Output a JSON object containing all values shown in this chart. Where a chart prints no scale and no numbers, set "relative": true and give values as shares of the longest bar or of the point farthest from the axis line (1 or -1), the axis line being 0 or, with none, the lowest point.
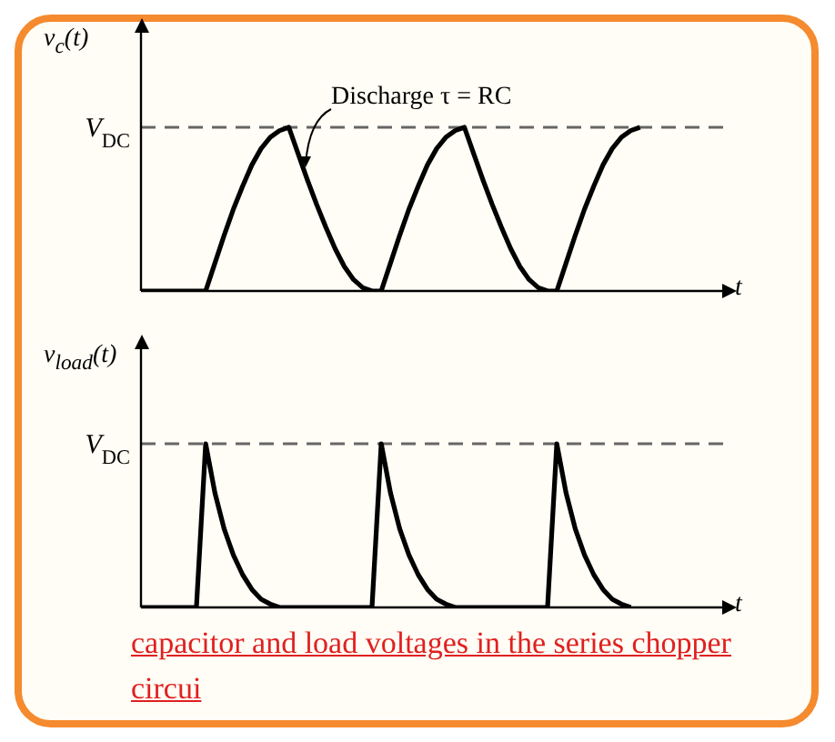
{
  "chart_data": [
    {
      "type": "line",
      "relative": true,
      "ylabel": "v$_{c}$(t)",
      "xlabel": "t",
      "marker": "none",
      "line_style": "solid",
      "categories": [
        null,
        null,
        null,
        null,
        null,
        null,
        null,
        null,
        null,
        null,
        null,
        null,
        null,
        null,
        null,
        null,
        null,
        null,
        null,
        null,
        null,
        null,
        null,
        null,
        null,
        null,
        null,
        null,
        null,
        null,
        null,
        null,
        null,
        null,
        null,
        null,
        null,
        null,
        null,
        null,
        null,
        null,
        null,
        null,
        null,
        null,
        null,
        null,
        null,
        null,
        null,
        null,
        null,
        null,
        null,
        null,
        null,
        null,
        null,
        null,
        null,
        null,
        null,
        null
      ],
      "series": [
        {
          "color": "#000000",
          "values": [
            0,
            0,
            0,
            0,
            0,
            0,
            0,
            0,
            0.17,
            0.34,
            0.5,
            0.64,
            0.77,
            0.87,
            0.94,
            0.98,
            1,
            0.84,
            0.68,
            0.53,
            0.39,
            0.26,
            0.15,
            0.07,
            0.02,
            0,
            0,
            0.17,
            0.34,
            0.5,
            0.64,
            0.77,
            0.87,
            0.94,
            0.98,
            1,
            0.84,
            0.68,
            0.53,
            0.39,
            0.26,
            0.15,
            0.07,
            0.02,
            0,
            0,
            0.17,
            0.34,
            0.5,
            0.64,
            0.77,
            0.87,
            0.94,
            0.98,
            1,
            null,
            null,
            null,
            null,
            null,
            null,
            null,
            null,
            null
          ]
        }
      ],
      "ref_lines": [
        {
          "axis": "y",
          "value": 1,
          "label": "V$_{DC}$",
          "color": "#666666",
          "line_style": "dashed"
        }
      ],
      "annotations": [
        "Discharge τ = RC"
      ]
    },
    {
      "type": "line",
      "relative": true,
      "ylabel": "v$_{load}$(t)",
      "xlabel": "t",
      "marker": "none",
      "line_style": "solid",
      "categories": [
        null,
        null,
        null,
        null,
        null,
        null,
        null,
        null,
        null,
        null,
        null,
        null,
        null,
        null,
        null,
        null,
        null,
        null,
        null,
        null,
        null,
        null,
        null,
        null,
        null,
        null,
        null,
        null,
        null,
        null,
        null,
        null,
        null,
        null,
        null,
        null,
        null,
        null,
        null,
        null,
        null,
        null,
        null,
        null,
        null,
        null,
        null,
        null,
        null,
        null,
        null,
        null,
        null,
        null,
        null,
        null,
        null,
        null,
        null,
        null,
        null,
        null,
        null,
        null
      ],
      "series": [
        {
          "color": "#000000",
          "values": [
            0,
            0,
            0,
            0,
            0,
            0,
            0,
            1,
            0.7,
            0.48,
            0.32,
            0.2,
            0.11,
            0.05,
            0.02,
            0,
            0,
            0,
            0,
            0,
            0,
            0,
            0,
            0,
            0,
            0,
            1,
            0.7,
            0.48,
            0.32,
            0.2,
            0.11,
            0.05,
            0.02,
            0,
            0,
            0,
            0,
            0,
            0,
            0,
            0,
            0,
            0,
            0,
            1,
            0.7,
            0.48,
            0.32,
            0.2,
            0.11,
            0.05,
            0.02,
            0,
            null,
            null,
            null,
            null,
            null,
            null,
            null,
            null,
            null,
            null
          ]
        }
      ],
      "ref_lines": [
        {
          "axis": "y",
          "value": 1,
          "label": "V$_{DC}$",
          "color": "#666666",
          "line_style": "dashed"
        }
      ],
      "annotations": [
        "capacitor and load voltages in the series chopper circui"
      ]
    }
  ]
}
